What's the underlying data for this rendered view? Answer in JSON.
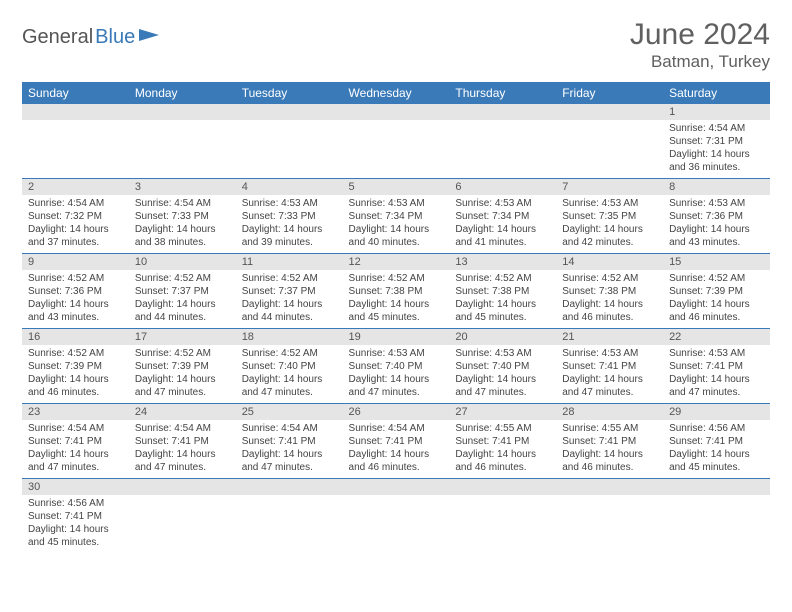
{
  "logo": {
    "part1": "General",
    "part2": "Blue"
  },
  "title": "June 2024",
  "location": "Batman, Turkey",
  "colors": {
    "header_bg": "#3a7ab8",
    "header_text": "#ffffff",
    "daynum_bg": "#e5e5e5",
    "border": "#3a7ab8",
    "title_color": "#606060",
    "body_text": "#444444"
  },
  "weekdays": [
    "Sunday",
    "Monday",
    "Tuesday",
    "Wednesday",
    "Thursday",
    "Friday",
    "Saturday"
  ],
  "grid": [
    [
      null,
      null,
      null,
      null,
      null,
      null,
      {
        "day": "1",
        "sunrise": "Sunrise: 4:54 AM",
        "sunset": "Sunset: 7:31 PM",
        "daylight1": "Daylight: 14 hours",
        "daylight2": "and 36 minutes."
      }
    ],
    [
      {
        "day": "2",
        "sunrise": "Sunrise: 4:54 AM",
        "sunset": "Sunset: 7:32 PM",
        "daylight1": "Daylight: 14 hours",
        "daylight2": "and 37 minutes."
      },
      {
        "day": "3",
        "sunrise": "Sunrise: 4:54 AM",
        "sunset": "Sunset: 7:33 PM",
        "daylight1": "Daylight: 14 hours",
        "daylight2": "and 38 minutes."
      },
      {
        "day": "4",
        "sunrise": "Sunrise: 4:53 AM",
        "sunset": "Sunset: 7:33 PM",
        "daylight1": "Daylight: 14 hours",
        "daylight2": "and 39 minutes."
      },
      {
        "day": "5",
        "sunrise": "Sunrise: 4:53 AM",
        "sunset": "Sunset: 7:34 PM",
        "daylight1": "Daylight: 14 hours",
        "daylight2": "and 40 minutes."
      },
      {
        "day": "6",
        "sunrise": "Sunrise: 4:53 AM",
        "sunset": "Sunset: 7:34 PM",
        "daylight1": "Daylight: 14 hours",
        "daylight2": "and 41 minutes."
      },
      {
        "day": "7",
        "sunrise": "Sunrise: 4:53 AM",
        "sunset": "Sunset: 7:35 PM",
        "daylight1": "Daylight: 14 hours",
        "daylight2": "and 42 minutes."
      },
      {
        "day": "8",
        "sunrise": "Sunrise: 4:53 AM",
        "sunset": "Sunset: 7:36 PM",
        "daylight1": "Daylight: 14 hours",
        "daylight2": "and 43 minutes."
      }
    ],
    [
      {
        "day": "9",
        "sunrise": "Sunrise: 4:52 AM",
        "sunset": "Sunset: 7:36 PM",
        "daylight1": "Daylight: 14 hours",
        "daylight2": "and 43 minutes."
      },
      {
        "day": "10",
        "sunrise": "Sunrise: 4:52 AM",
        "sunset": "Sunset: 7:37 PM",
        "daylight1": "Daylight: 14 hours",
        "daylight2": "and 44 minutes."
      },
      {
        "day": "11",
        "sunrise": "Sunrise: 4:52 AM",
        "sunset": "Sunset: 7:37 PM",
        "daylight1": "Daylight: 14 hours",
        "daylight2": "and 44 minutes."
      },
      {
        "day": "12",
        "sunrise": "Sunrise: 4:52 AM",
        "sunset": "Sunset: 7:38 PM",
        "daylight1": "Daylight: 14 hours",
        "daylight2": "and 45 minutes."
      },
      {
        "day": "13",
        "sunrise": "Sunrise: 4:52 AM",
        "sunset": "Sunset: 7:38 PM",
        "daylight1": "Daylight: 14 hours",
        "daylight2": "and 45 minutes."
      },
      {
        "day": "14",
        "sunrise": "Sunrise: 4:52 AM",
        "sunset": "Sunset: 7:38 PM",
        "daylight1": "Daylight: 14 hours",
        "daylight2": "and 46 minutes."
      },
      {
        "day": "15",
        "sunrise": "Sunrise: 4:52 AM",
        "sunset": "Sunset: 7:39 PM",
        "daylight1": "Daylight: 14 hours",
        "daylight2": "and 46 minutes."
      }
    ],
    [
      {
        "day": "16",
        "sunrise": "Sunrise: 4:52 AM",
        "sunset": "Sunset: 7:39 PM",
        "daylight1": "Daylight: 14 hours",
        "daylight2": "and 46 minutes."
      },
      {
        "day": "17",
        "sunrise": "Sunrise: 4:52 AM",
        "sunset": "Sunset: 7:39 PM",
        "daylight1": "Daylight: 14 hours",
        "daylight2": "and 47 minutes."
      },
      {
        "day": "18",
        "sunrise": "Sunrise: 4:52 AM",
        "sunset": "Sunset: 7:40 PM",
        "daylight1": "Daylight: 14 hours",
        "daylight2": "and 47 minutes."
      },
      {
        "day": "19",
        "sunrise": "Sunrise: 4:53 AM",
        "sunset": "Sunset: 7:40 PM",
        "daylight1": "Daylight: 14 hours",
        "daylight2": "and 47 minutes."
      },
      {
        "day": "20",
        "sunrise": "Sunrise: 4:53 AM",
        "sunset": "Sunset: 7:40 PM",
        "daylight1": "Daylight: 14 hours",
        "daylight2": "and 47 minutes."
      },
      {
        "day": "21",
        "sunrise": "Sunrise: 4:53 AM",
        "sunset": "Sunset: 7:41 PM",
        "daylight1": "Daylight: 14 hours",
        "daylight2": "and 47 minutes."
      },
      {
        "day": "22",
        "sunrise": "Sunrise: 4:53 AM",
        "sunset": "Sunset: 7:41 PM",
        "daylight1": "Daylight: 14 hours",
        "daylight2": "and 47 minutes."
      }
    ],
    [
      {
        "day": "23",
        "sunrise": "Sunrise: 4:54 AM",
        "sunset": "Sunset: 7:41 PM",
        "daylight1": "Daylight: 14 hours",
        "daylight2": "and 47 minutes."
      },
      {
        "day": "24",
        "sunrise": "Sunrise: 4:54 AM",
        "sunset": "Sunset: 7:41 PM",
        "daylight1": "Daylight: 14 hours",
        "daylight2": "and 47 minutes."
      },
      {
        "day": "25",
        "sunrise": "Sunrise: 4:54 AM",
        "sunset": "Sunset: 7:41 PM",
        "daylight1": "Daylight: 14 hours",
        "daylight2": "and 47 minutes."
      },
      {
        "day": "26",
        "sunrise": "Sunrise: 4:54 AM",
        "sunset": "Sunset: 7:41 PM",
        "daylight1": "Daylight: 14 hours",
        "daylight2": "and 46 minutes."
      },
      {
        "day": "27",
        "sunrise": "Sunrise: 4:55 AM",
        "sunset": "Sunset: 7:41 PM",
        "daylight1": "Daylight: 14 hours",
        "daylight2": "and 46 minutes."
      },
      {
        "day": "28",
        "sunrise": "Sunrise: 4:55 AM",
        "sunset": "Sunset: 7:41 PM",
        "daylight1": "Daylight: 14 hours",
        "daylight2": "and 46 minutes."
      },
      {
        "day": "29",
        "sunrise": "Sunrise: 4:56 AM",
        "sunset": "Sunset: 7:41 PM",
        "daylight1": "Daylight: 14 hours",
        "daylight2": "and 45 minutes."
      }
    ],
    [
      {
        "day": "30",
        "sunrise": "Sunrise: 4:56 AM",
        "sunset": "Sunset: 7:41 PM",
        "daylight1": "Daylight: 14 hours",
        "daylight2": "and 45 minutes."
      },
      null,
      null,
      null,
      null,
      null,
      null
    ]
  ]
}
